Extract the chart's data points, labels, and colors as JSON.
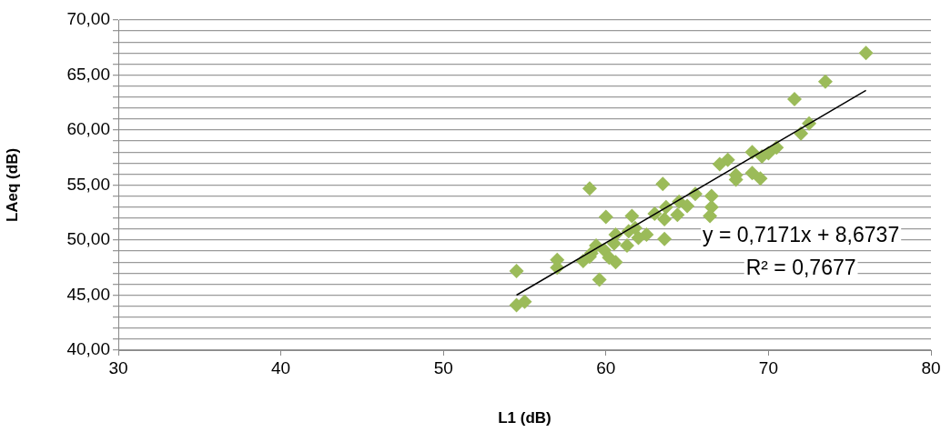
{
  "chart_data": {
    "type": "scatter",
    "xlabel": "L1 (dB)",
    "ylabel": "LAeq (dB)",
    "grid": "y",
    "legend": false,
    "xlim": [
      30,
      80
    ],
    "xticks": [
      30,
      40,
      50,
      60,
      70,
      80
    ],
    "ylim": [
      40,
      70
    ],
    "yticks": [
      {
        "value": 40,
        "label": "40,00"
      },
      {
        "value": 41,
        "label": null
      },
      {
        "value": 42,
        "label": null
      },
      {
        "value": 43,
        "label": null
      },
      {
        "value": 44,
        "label": null
      },
      {
        "value": 45,
        "label": "45,00"
      },
      {
        "value": 46,
        "label": null
      },
      {
        "value": 47,
        "label": null
      },
      {
        "value": 48,
        "label": null
      },
      {
        "value": 49,
        "label": null
      },
      {
        "value": 50,
        "label": "50,00"
      },
      {
        "value": 51,
        "label": null
      },
      {
        "value": 52,
        "label": null
      },
      {
        "value": 53,
        "label": null
      },
      {
        "value": 54,
        "label": null
      },
      {
        "value": 55,
        "label": "55,00"
      },
      {
        "value": 56,
        "label": null
      },
      {
        "value": 57,
        "label": null
      },
      {
        "value": 58,
        "label": null
      },
      {
        "value": 59,
        "label": null
      },
      {
        "value": 60,
        "label": "60,00"
      },
      {
        "value": 61,
        "label": null
      },
      {
        "value": 62,
        "label": null
      },
      {
        "value": 63,
        "label": null
      },
      {
        "value": 64,
        "label": null
      },
      {
        "value": 65,
        "label": "65,00"
      },
      {
        "value": 66,
        "label": null
      },
      {
        "value": 67,
        "label": null
      },
      {
        "value": 68,
        "label": null
      },
      {
        "value": 69,
        "label": null
      },
      {
        "value": 70,
        "label": "70,00"
      }
    ],
    "annotations": [
      "y = 0,7171x + 8,6737",
      "R² = 0,7677"
    ],
    "series": [
      {
        "marker": "diamond",
        "color": "#9bbb59",
        "x": [
          76.0,
          73.5,
          71.6,
          72.5,
          72.0,
          70.5,
          70.0,
          69.6,
          69.0,
          69.0,
          69.5,
          67.5,
          67.0,
          68.0,
          68.0,
          65.5,
          64.5,
          65.0,
          63.5,
          66.5,
          66.5,
          66.4,
          59.0,
          60.0,
          61.6,
          63.0,
          63.6,
          62.5,
          63.6,
          60.6,
          61.4,
          61.8,
          62.0,
          60.5,
          59.9,
          59.4,
          59.1,
          59.0,
          60.6,
          59.6,
          57.0,
          57.0,
          58.6,
          54.5,
          54.5,
          55.0,
          61.3,
          60.2,
          64.4,
          63.7
        ],
        "values": [
          67.0,
          64.4,
          62.8,
          60.6,
          59.7,
          58.4,
          57.9,
          57.6,
          58.0,
          56.1,
          55.6,
          57.3,
          56.9,
          55.9,
          55.5,
          54.2,
          53.5,
          53.1,
          55.1,
          54.0,
          53.0,
          52.2,
          54.7,
          52.1,
          52.2,
          52.4,
          51.9,
          50.5,
          50.1,
          50.5,
          50.8,
          51.1,
          50.2,
          49.7,
          49.1,
          49.5,
          48.8,
          48.5,
          48.0,
          46.4,
          48.2,
          47.5,
          48.1,
          47.2,
          44.1,
          44.4,
          49.5,
          48.4,
          52.3,
          53.0
        ]
      },
      {
        "type": "line",
        "marker": "none",
        "color": "#000000",
        "x": [
          54.5,
          76.0
        ],
        "values": [
          45.0,
          63.6
        ]
      }
    ]
  }
}
